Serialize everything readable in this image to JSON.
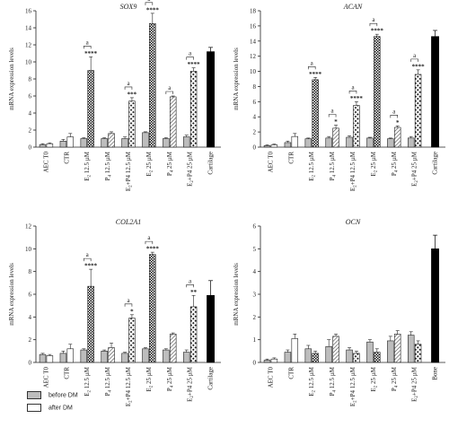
{
  "chart_data": [
    {
      "type": "bar",
      "title": "SOX9",
      "ylabel": "mRNA expression levels",
      "ylim": [
        0,
        16
      ],
      "yticks": [
        0,
        2,
        4,
        6,
        8,
        10,
        12,
        14,
        16
      ],
      "categories": [
        {
          "pre": "AEC T0",
          "sub": "",
          "post": ""
        },
        {
          "pre": "CTR",
          "sub": "",
          "post": ""
        },
        {
          "pre": "E",
          "sub": "2",
          "post": " 12.5 µM"
        },
        {
          "pre": "P",
          "sub": "4",
          "post": " 12.5 µM"
        },
        {
          "pre": "E",
          "sub": "2",
          "post": "+P4 12.5 µM"
        },
        {
          "pre": "E",
          "sub": "2",
          "post": " 25 µM"
        },
        {
          "pre": "P",
          "sub": "4",
          "post": " 25 µM"
        },
        {
          "pre": "E",
          "sub": "2",
          "post": "+P4 25 µM"
        },
        {
          "pre": "Cartilage",
          "sub": "",
          "post": ""
        }
      ],
      "groups": [
        {
          "before": 0.3,
          "before_err": 0.1,
          "after": 0.4,
          "after_err": 0.1
        },
        {
          "before": 0.7,
          "before_err": 0.2,
          "after": 1.2,
          "after_err": 0.4
        },
        {
          "before": 1.0,
          "before_err": 0.1,
          "after": 9.0,
          "after_err": 1.6,
          "stars": "****"
        },
        {
          "before": 1.0,
          "before_err": 0.1,
          "after": 1.6,
          "after_err": 0.2
        },
        {
          "before": 1.0,
          "before_err": 0.2,
          "after": 5.4,
          "after_err": 0.4,
          "stars": "***"
        },
        {
          "before": 1.7,
          "before_err": 0.1,
          "after": 14.5,
          "after_err": 1.2,
          "stars": "****"
        },
        {
          "before": 1.0,
          "before_err": 0.1,
          "after": 5.9,
          "after_err": 0.1
        },
        {
          "before": 1.2,
          "before_err": 0.2,
          "after": 8.9,
          "after_err": 0.4,
          "stars": "****"
        },
        {
          "single": 11.2,
          "single_err": 0.5
        }
      ],
      "brackets": [
        {
          "group": 2,
          "label": "a"
        },
        {
          "group": 4,
          "label": "a"
        },
        {
          "group": 5,
          "label": "a"
        },
        {
          "group": 6,
          "label": "a"
        },
        {
          "group": 7,
          "label": "a"
        }
      ]
    },
    {
      "type": "bar",
      "title": "ACAN",
      "ylabel": "mRNA expression levels",
      "ylim": [
        0,
        18
      ],
      "yticks": [
        0,
        2,
        4,
        6,
        8,
        10,
        12,
        14,
        16,
        18
      ],
      "categories": [
        {
          "pre": "AEC T0",
          "sub": "",
          "post": ""
        },
        {
          "pre": "CTR",
          "sub": "",
          "post": ""
        },
        {
          "pre": "E",
          "sub": "2",
          "post": " 12.5 µM"
        },
        {
          "pre": "P",
          "sub": "4",
          "post": " 12.5 µM"
        },
        {
          "pre": "E",
          "sub": "2",
          "post": "+P4 12.5 µM"
        },
        {
          "pre": "E",
          "sub": "2",
          "post": " 25 µM"
        },
        {
          "pre": "P",
          "sub": "4",
          "post": " 25 µM"
        },
        {
          "pre": "E",
          "sub": "2",
          "post": "+P4 25 µM"
        },
        {
          "pre": "Cartilage",
          "sub": "",
          "post": ""
        }
      ],
      "groups": [
        {
          "before": 0.2,
          "before_err": 0.1,
          "after": 0.3,
          "after_err": 0.1
        },
        {
          "before": 0.6,
          "before_err": 0.2,
          "after": 1.4,
          "after_err": 0.4
        },
        {
          "before": 1.1,
          "before_err": 0.1,
          "after": 8.9,
          "after_err": 0.3,
          "stars": "****"
        },
        {
          "before": 1.2,
          "before_err": 0.2,
          "after": 2.5,
          "after_err": 0.4,
          "stars": "*"
        },
        {
          "before": 1.3,
          "before_err": 0.2,
          "after": 5.5,
          "after_err": 0.5,
          "stars": "****"
        },
        {
          "before": 1.2,
          "before_err": 0.1,
          "after": 14.6,
          "after_err": 0.3,
          "stars": "****"
        },
        {
          "before": 1.1,
          "before_err": 0.1,
          "after": 2.6,
          "after_err": 0.2,
          "stars": "*"
        },
        {
          "before": 1.2,
          "before_err": 0.2,
          "after": 9.6,
          "after_err": 0.6,
          "stars": "****"
        },
        {
          "single": 14.6,
          "single_err": 0.8
        }
      ],
      "brackets": [
        {
          "group": 2,
          "label": "a"
        },
        {
          "group": 3,
          "label": "a"
        },
        {
          "group": 4,
          "label": "a"
        },
        {
          "group": 5,
          "label": "a"
        },
        {
          "group": 6,
          "label": "a"
        },
        {
          "group": 7,
          "label": "a"
        }
      ]
    },
    {
      "type": "bar",
      "title": "COL2A1",
      "ylabel": "mRNA expression levels",
      "ylim": [
        0,
        12
      ],
      "yticks": [
        0,
        2,
        4,
        6,
        8,
        10,
        12
      ],
      "categories": [
        {
          "pre": "AEC T0",
          "sub": "",
          "post": ""
        },
        {
          "pre": "CTR",
          "sub": "",
          "post": ""
        },
        {
          "pre": "E",
          "sub": "2",
          "post": " 12.5 µM"
        },
        {
          "pre": "P",
          "sub": "4",
          "post": " 12.5 µM"
        },
        {
          "pre": "E",
          "sub": "2",
          "post": "+P4 12.5 µM"
        },
        {
          "pre": "E",
          "sub": "2",
          "post": " 25 µM"
        },
        {
          "pre": "P",
          "sub": "4",
          "post": " 25 µM"
        },
        {
          "pre": "E",
          "sub": "2",
          "post": "+P4 25 µM"
        },
        {
          "pre": "Cartilage",
          "sub": "",
          "post": ""
        }
      ],
      "groups": [
        {
          "before": 0.7,
          "before_err": 0.1,
          "after": 0.6,
          "after_err": 0.1
        },
        {
          "before": 0.8,
          "before_err": 0.2,
          "after": 1.2,
          "after_err": 0.4
        },
        {
          "before": 1.1,
          "before_err": 0.1,
          "after": 6.7,
          "after_err": 1.5,
          "stars": "****"
        },
        {
          "before": 1.0,
          "before_err": 0.1,
          "after": 1.3,
          "after_err": 0.4
        },
        {
          "before": 0.8,
          "before_err": 0.1,
          "after": 3.9,
          "after_err": 0.3,
          "stars": "*"
        },
        {
          "before": 1.2,
          "before_err": 0.1,
          "after": 9.5,
          "after_err": 0.2,
          "stars": "****"
        },
        {
          "before": 1.1,
          "before_err": 0.1,
          "after": 2.5,
          "after_err": 0.1
        },
        {
          "before": 0.9,
          "before_err": 0.2,
          "after": 4.9,
          "after_err": 1.0,
          "stars": "**"
        },
        {
          "single": 5.9,
          "single_err": 1.3
        }
      ],
      "brackets": [
        {
          "group": 2,
          "label": "a"
        },
        {
          "group": 4,
          "label": "a"
        },
        {
          "group": 5,
          "label": "a"
        },
        {
          "group": 7,
          "label": "a"
        }
      ]
    },
    {
      "type": "bar",
      "title": "OCN",
      "ylabel": "mRNA expression levels",
      "ylim": [
        0,
        6
      ],
      "yticks": [
        0,
        1,
        2,
        3,
        4,
        5,
        6
      ],
      "categories": [
        {
          "pre": "AEC T0",
          "sub": "",
          "post": ""
        },
        {
          "pre": "CTR",
          "sub": "",
          "post": ""
        },
        {
          "pre": "E",
          "sub": "2",
          "post": " 12.5 µM"
        },
        {
          "pre": "P",
          "sub": "4",
          "post": " 12.5 µM"
        },
        {
          "pre": "E",
          "sub": "2",
          "post": "+P4 12.5 µM"
        },
        {
          "pre": "E",
          "sub": "2",
          "post": " 25 µM"
        },
        {
          "pre": "P",
          "sub": "4",
          "post": " 25 µM"
        },
        {
          "pre": "E",
          "sub": "2",
          "post": "+P4 25 µM"
        },
        {
          "pre": "Bone",
          "sub": "",
          "post": ""
        }
      ],
      "groups": [
        {
          "before": 0.1,
          "before_err": 0.05,
          "after": 0.15,
          "after_err": 0.05
        },
        {
          "before": 0.45,
          "before_err": 0.1,
          "after": 1.05,
          "after_err": 0.2
        },
        {
          "before": 0.6,
          "before_err": 0.15,
          "after": 0.4,
          "after_err": 0.1
        },
        {
          "before": 0.7,
          "before_err": 0.3,
          "after": 1.15,
          "after_err": 0.1
        },
        {
          "before": 0.55,
          "before_err": 0.1,
          "after": 0.4,
          "after_err": 0.1
        },
        {
          "before": 0.9,
          "before_err": 0.1,
          "after": 0.45,
          "after_err": 0.15
        },
        {
          "before": 0.95,
          "before_err": 0.2,
          "after": 1.25,
          "after_err": 0.15
        },
        {
          "before": 1.2,
          "before_err": 0.15,
          "after": 0.8,
          "after_err": 0.15
        },
        {
          "single": 5.0,
          "single_err": 0.6
        }
      ],
      "brackets": []
    }
  ],
  "legend": {
    "entries": [
      {
        "label": "before DM",
        "color": "#bdbdbd"
      },
      {
        "label": "after DM",
        "color": "#ffffff"
      }
    ]
  },
  "colors": {
    "before": "#bdbdbd",
    "after": "#ffffff",
    "reference": "#000000",
    "axis": "#222222"
  }
}
